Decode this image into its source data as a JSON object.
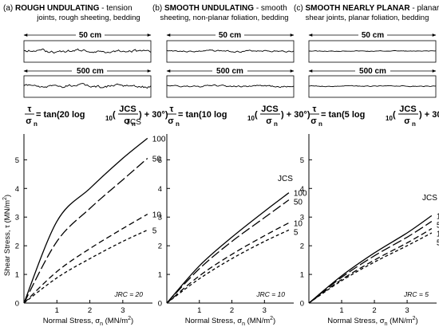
{
  "panels": [
    {
      "letter": "(a)",
      "title_bold": "ROUGH UNDULATING",
      "title_rest": " - tension",
      "subtitle": "joints, rough sheeting, bedding",
      "dim_top": "50 cm",
      "dim_bottom": "500 cm",
      "eq_coef": "20",
      "jcs_label": "JCS",
      "jrc": "JRC = 20"
    },
    {
      "letter": "(b)",
      "title_bold": "SMOOTH UNDULATING",
      "title_rest": " - smooth",
      "subtitle": "sheeting, non-planar foliation, bedding",
      "dim_top": "50 cm",
      "dim_bottom": "500 cm",
      "eq_coef": "10",
      "jcs_label": "JCS",
      "jrc": "JRC = 10"
    },
    {
      "letter": "(c)",
      "title_bold": "SMOOTH NEARLY PLANAR",
      "title_rest": " - planar",
      "subtitle": "shear joints, planar foliation, bedding",
      "dim_top": "50 cm",
      "dim_bottom": "500 cm",
      "eq_coef": "5",
      "jcs_label": "JCS",
      "jrc": "JRC = 5"
    }
  ],
  "equation": {
    "tau": "τ",
    "sigma": "σ",
    "sub_n": "n",
    "sub_10": "10",
    "eq_pre": " = tan(",
    "log": " log",
    "paren_open": "(",
    "jcs": "JCS",
    "eq_post": ") + 30°)"
  },
  "axes": {
    "ylabel_main": "Shear Stress, τ (MN/m",
    "ylabel_sup": "2",
    "ylabel_end": ")",
    "xlabel_main": "Normal Stress, σ",
    "xlabel_sub": "n",
    "xlabel_end": " (MN/m",
    "xlabel_sup": "2",
    "xlabel_close": ")",
    "x_ticks": [
      "1",
      "2",
      "3"
    ],
    "y_ticks": [
      "0",
      "1",
      "2",
      "3",
      "4",
      "5"
    ]
  },
  "chart_data": [
    {
      "type": "line",
      "xlabel": "Normal Stress, σn (MN/m2)",
      "ylabel": "Shear Stress, τ (MN/m2)",
      "xlim": [
        0,
        3.9
      ],
      "ylim": [
        0,
        5.9
      ],
      "jrc": 20,
      "series": [
        {
          "name": "100",
          "style": "solid",
          "x": [
            0,
            1.0,
            2.0,
            3.0,
            3.75
          ],
          "y": [
            0,
            2.85,
            4.0,
            5.05,
            5.75
          ]
        },
        {
          "name": "50",
          "style": "long-dash",
          "x": [
            0,
            1.0,
            2.0,
            3.0,
            3.75
          ],
          "y": [
            0,
            2.15,
            3.3,
            4.3,
            5.05
          ]
        },
        {
          "name": "10",
          "style": "dash",
          "x": [
            0,
            1.0,
            2.0,
            3.0,
            3.75
          ],
          "y": [
            0,
            1.1,
            1.9,
            2.6,
            3.1
          ]
        },
        {
          "name": "5",
          "style": "short-dash",
          "x": [
            0,
            1.0,
            2.0,
            3.0,
            3.75
          ],
          "y": [
            0,
            0.88,
            1.55,
            2.15,
            2.55
          ]
        }
      ]
    },
    {
      "type": "line",
      "xlabel": "Normal Stress, σn (MN/m2)",
      "ylabel": "",
      "xlim": [
        0,
        3.9
      ],
      "ylim": [
        0,
        5.9
      ],
      "jrc": 10,
      "series": [
        {
          "name": "100",
          "style": "solid",
          "x": [
            0,
            1.0,
            2.0,
            3.0,
            3.75
          ],
          "y": [
            0,
            1.3,
            2.3,
            3.2,
            3.85
          ]
        },
        {
          "name": "50",
          "style": "long-dash",
          "x": [
            0,
            1.0,
            2.0,
            3.0,
            3.75
          ],
          "y": [
            0,
            1.2,
            2.15,
            2.98,
            3.6
          ]
        },
        {
          "name": "10",
          "style": "dash",
          "x": [
            0,
            1.0,
            2.0,
            3.0,
            3.75
          ],
          "y": [
            0,
            0.95,
            1.7,
            2.35,
            2.8
          ]
        },
        {
          "name": "5",
          "style": "short-dash",
          "x": [
            0,
            1.0,
            2.0,
            3.0,
            3.75
          ],
          "y": [
            0,
            0.85,
            1.55,
            2.15,
            2.55
          ]
        }
      ]
    },
    {
      "type": "line",
      "xlabel": "Normal Stress, σn (MN/m2)",
      "ylabel": "",
      "xlim": [
        0,
        3.9
      ],
      "ylim": [
        0,
        5.9
      ],
      "jrc": 5,
      "series": [
        {
          "name": "100",
          "style": "solid",
          "x": [
            0,
            1.0,
            2.0,
            3.0,
            3.75
          ],
          "y": [
            0,
            0.95,
            1.75,
            2.45,
            3.05
          ]
        },
        {
          "name": "50",
          "style": "long-dash",
          "x": [
            0,
            1.0,
            2.0,
            3.0,
            3.75
          ],
          "y": [
            0,
            0.9,
            1.65,
            2.3,
            2.85
          ]
        },
        {
          "name": "10",
          "style": "dash",
          "x": [
            0,
            1.0,
            2.0,
            3.0,
            3.75
          ],
          "y": [
            0,
            0.82,
            1.5,
            2.1,
            2.6
          ]
        },
        {
          "name": "5",
          "style": "short-dash",
          "x": [
            0,
            1.0,
            2.0,
            3.0,
            3.75
          ],
          "y": [
            0,
            0.78,
            1.43,
            2.0,
            2.45
          ]
        }
      ]
    }
  ]
}
